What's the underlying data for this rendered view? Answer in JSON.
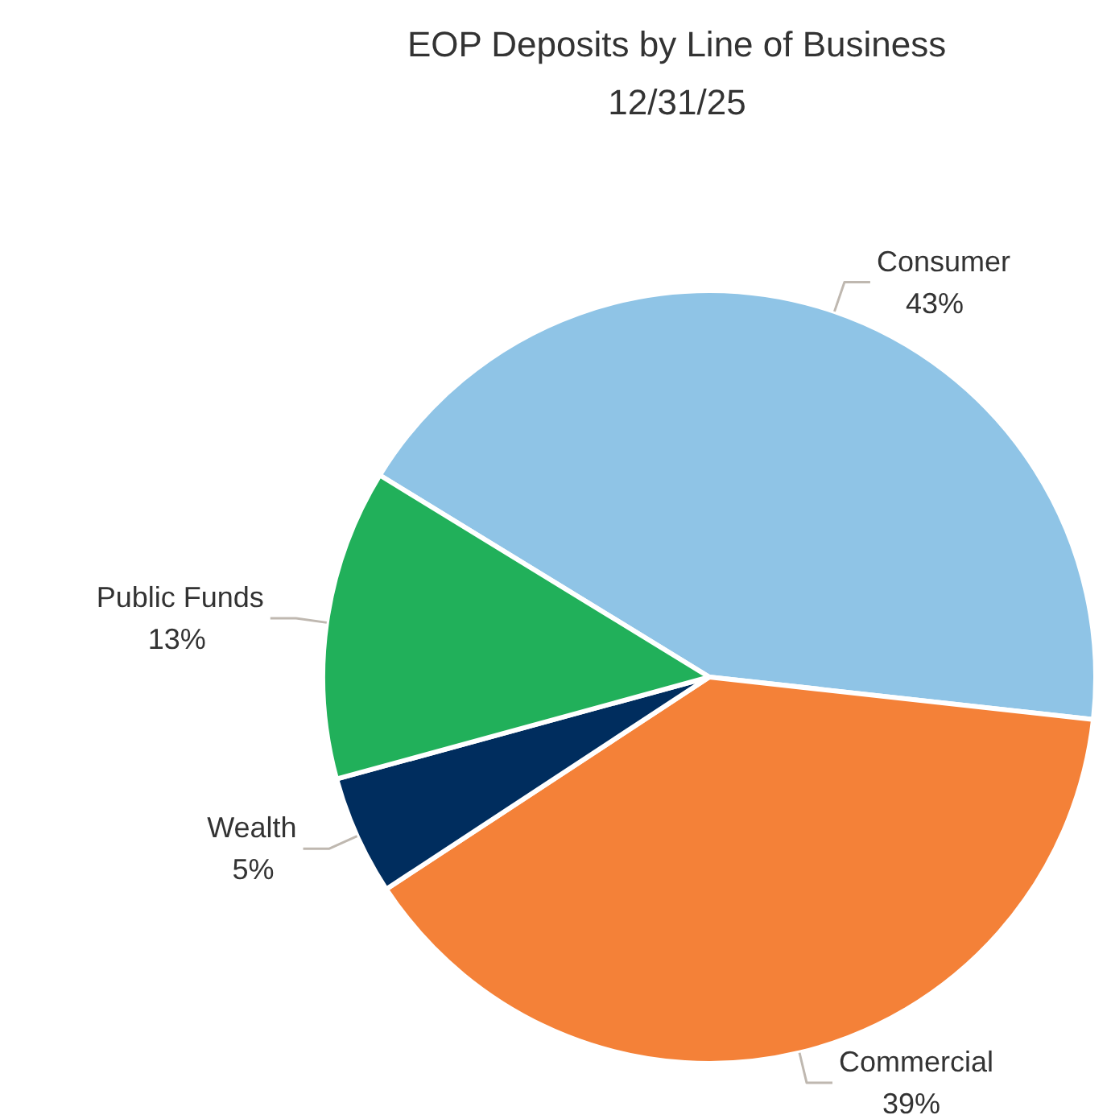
{
  "chart_data": {
    "type": "pie",
    "title": "EOP Deposits by Line of Business",
    "subtitle": "12/31/25",
    "categories": [
      "Consumer",
      "Commercial",
      "Wealth",
      "Public Funds"
    ],
    "values": [
      43,
      39,
      5,
      13
    ],
    "value_labels": [
      "43%",
      "39%",
      "5%",
      "13%"
    ],
    "colors": [
      "#8fc4e6",
      "#f48138",
      "#002d5e",
      "#21b05a"
    ]
  }
}
